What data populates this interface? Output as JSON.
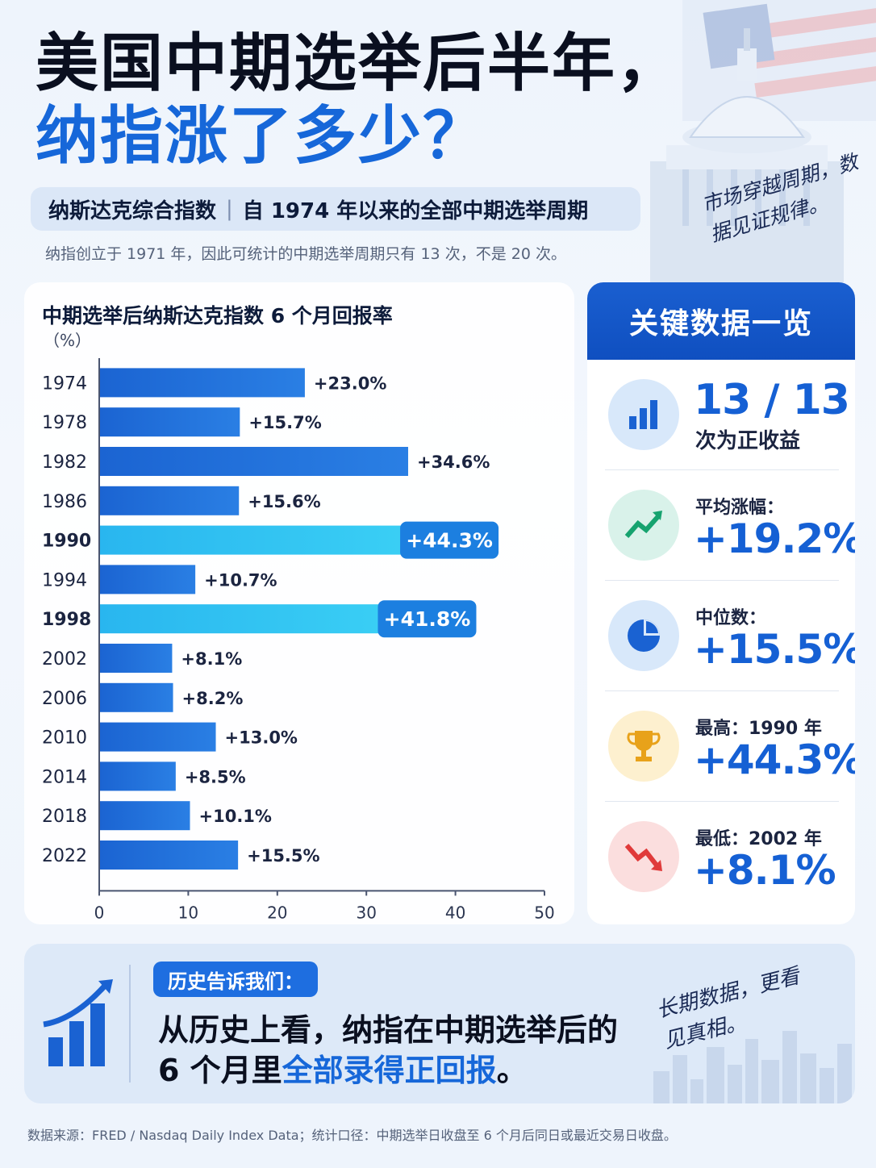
{
  "header": {
    "title_line1": "美国中期选举后半年，",
    "title_line2": "纳指涨了多少？",
    "subtitle_left": "纳斯达克综合指数",
    "subtitle_right": "自 1974 年以来的全部中期选举周期",
    "note": "纳指创立于 1971 年，因此可统计的中期选举周期只有 13 次，不是 20 次。",
    "slogan": "市场穿越周期，数据见证规律。"
  },
  "chart_data": {
    "type": "bar",
    "orientation": "horizontal",
    "title": "中期选举后纳斯达克指数 6 个月回报率",
    "unit": "（%）",
    "categories": [
      "1974",
      "1978",
      "1982",
      "1986",
      "1990",
      "1994",
      "1998",
      "2002",
      "2006",
      "2010",
      "2014",
      "2018",
      "2022"
    ],
    "values": [
      23.0,
      15.7,
      34.6,
      15.6,
      44.3,
      10.7,
      41.8,
      8.1,
      8.2,
      13.0,
      8.5,
      10.1,
      15.5
    ],
    "data_labels": [
      "+23.0%",
      "+15.7%",
      "+34.6%",
      "+15.6%",
      "+44.3%",
      "+10.7%",
      "+41.8%",
      "+8.1%",
      "+8.2%",
      "+13.0%",
      "+8.5%",
      "+10.1%",
      "+15.5%"
    ],
    "highlighted": [
      "1990",
      "1998"
    ],
    "xlim": [
      0,
      50
    ],
    "xticks": [
      0,
      10,
      20,
      30,
      40,
      50
    ],
    "colors": {
      "bar": "#1f6fd6",
      "highlight": "#2ec8f0",
      "highlight_label_bg": "#1c7fe0"
    }
  },
  "key_points": {
    "title": "关键数据一览",
    "items": [
      {
        "icon": "bar-chart-icon",
        "label": "次为正收益",
        "value": "13 / 13",
        "icon_bg": "#d8e8fa"
      },
      {
        "icon": "trend-up-icon",
        "label": "平均涨幅：",
        "value": "+19.2%",
        "icon_bg": "#d9f2ea"
      },
      {
        "icon": "pie-chart-icon",
        "label": "中位数：",
        "value": "+15.5%",
        "icon_bg": "#d8e8fa"
      },
      {
        "icon": "trophy-icon",
        "label": "最高：1990 年",
        "value": "+44.3%",
        "icon_bg": "#fdf0cf"
      },
      {
        "icon": "trend-down-icon",
        "label": "最低：2002 年",
        "value": "+8.1%",
        "icon_bg": "#fbdede"
      }
    ]
  },
  "bottom": {
    "tag": "历史告诉我们：",
    "line1": "从历史上看，纳指在中期选举后的",
    "line2_prefix": "6 个月里",
    "line2_highlight": "全部录得正回报",
    "line2_suffix": "。",
    "slogan": "长期数据，更看见真相。"
  },
  "footer": {
    "source": "数据来源：FRED / Nasdaq Daily Index Data；统计口径：中期选举日收盘至 6 个月后同日或最近交易日收盘。"
  }
}
